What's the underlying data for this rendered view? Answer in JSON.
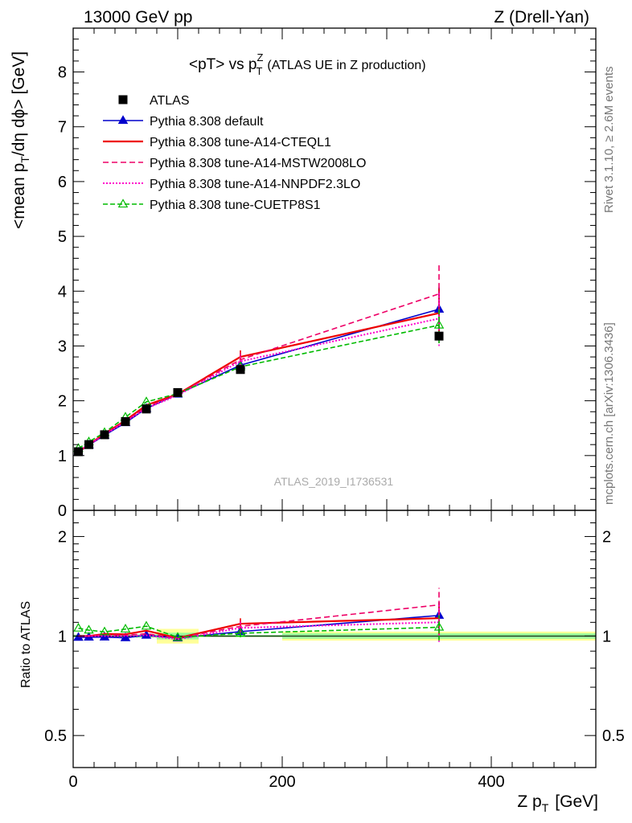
{
  "header": {
    "left": "13000 GeV pp",
    "right": "Z (Drell-Yan)"
  },
  "side_text": {
    "rivet": "Rivet 3.1.10, ≥ 2.6M events",
    "mcplots": "mcplots.cern.ch [arXiv:1306.3436]"
  },
  "watermark": "ATLAS_2019_I1736531",
  "chart_data": {
    "type": "line",
    "title_main": "<pT> vs p",
    "title_sup": "Z",
    "title_sub": "T",
    "title_extra": "(ATLAS UE in Z production)",
    "ylabel_main": "<mean p",
    "ylabel_sub": "T",
    "ylabel_rest": "/dη dϕ> [GeV]",
    "xlabel_main": "Z p",
    "xlabel_sub": "T",
    "xlabel_rest": "[GeV]",
    "ratio_ylabel": "Ratio to ATLAS",
    "xlim": [
      0,
      500
    ],
    "ylim": [
      0,
      8.8
    ],
    "ratio_ylim": [
      0.4,
      2.4
    ],
    "ratio_scale": "log",
    "x_ticks": [
      0,
      200,
      400
    ],
    "y_ticks": [
      0,
      1,
      2,
      3,
      4,
      5,
      6,
      7,
      8
    ],
    "ratio_ticks": [
      0.5,
      1,
      2
    ],
    "legend_position": "top-left",
    "x": [
      5,
      15,
      30,
      50,
      70,
      100,
      160,
      350
    ],
    "x_edges": [
      0,
      10,
      20,
      40,
      60,
      80,
      120,
      200,
      500
    ],
    "data": {
      "name": "ATLAS",
      "values": [
        1.07,
        1.2,
        1.38,
        1.62,
        1.85,
        2.15,
        2.57,
        3.18
      ],
      "band_stat": [
        0.01,
        0.01,
        0.01,
        0.015,
        0.02,
        0.05,
        0.02,
        0.06
      ],
      "band_total": [
        0.01,
        0.01,
        0.01,
        0.015,
        0.02,
        0.11,
        0.02,
        0.1
      ]
    },
    "series": [
      {
        "name": "Pythia 8.308 default",
        "color": "#0000cc",
        "dash": "",
        "marker": "triangle-filled",
        "values": [
          1.06,
          1.19,
          1.37,
          1.6,
          1.86,
          2.12,
          2.65,
          3.67
        ],
        "err": [
          0,
          0,
          0,
          0,
          0,
          0,
          0.1,
          0.4
        ]
      },
      {
        "name": "Pythia 8.308 tune-A14-CTEQL1",
        "color": "#ee0000",
        "dash": "",
        "marker": "none",
        "values": [
          1.07,
          1.2,
          1.4,
          1.64,
          1.92,
          2.12,
          2.8,
          3.6
        ],
        "err": [
          0,
          0,
          0,
          0,
          0,
          0,
          0.12,
          0.45
        ]
      },
      {
        "name": "Pythia 8.308 tune-A14-MSTW2008LO",
        "color": "#ee0066",
        "dash": "7,4",
        "marker": "none",
        "values": [
          1.07,
          1.2,
          1.39,
          1.63,
          1.88,
          2.12,
          2.75,
          3.95
        ],
        "err": [
          0,
          0,
          0,
          0,
          0,
          0,
          0.12,
          0.55
        ]
      },
      {
        "name": "Pythia 8.308 tune-A14-NNPDF2.3LO",
        "color": "#ff00cc",
        "dash": "2,2",
        "marker": "none",
        "values": [
          1.07,
          1.2,
          1.38,
          1.62,
          1.86,
          2.1,
          2.72,
          3.5
        ],
        "err": [
          0,
          0,
          0,
          0,
          0,
          0,
          0.12,
          0.5
        ]
      },
      {
        "name": "Pythia 8.308 tune-CUETP8S1",
        "color": "#00bb00",
        "dash": "6,3",
        "marker": "triangle-open",
        "values": [
          1.13,
          1.25,
          1.42,
          1.7,
          1.98,
          2.13,
          2.62,
          3.38
        ],
        "err": [
          0,
          0,
          0,
          0,
          0,
          0,
          0.08,
          0.33
        ]
      }
    ]
  }
}
